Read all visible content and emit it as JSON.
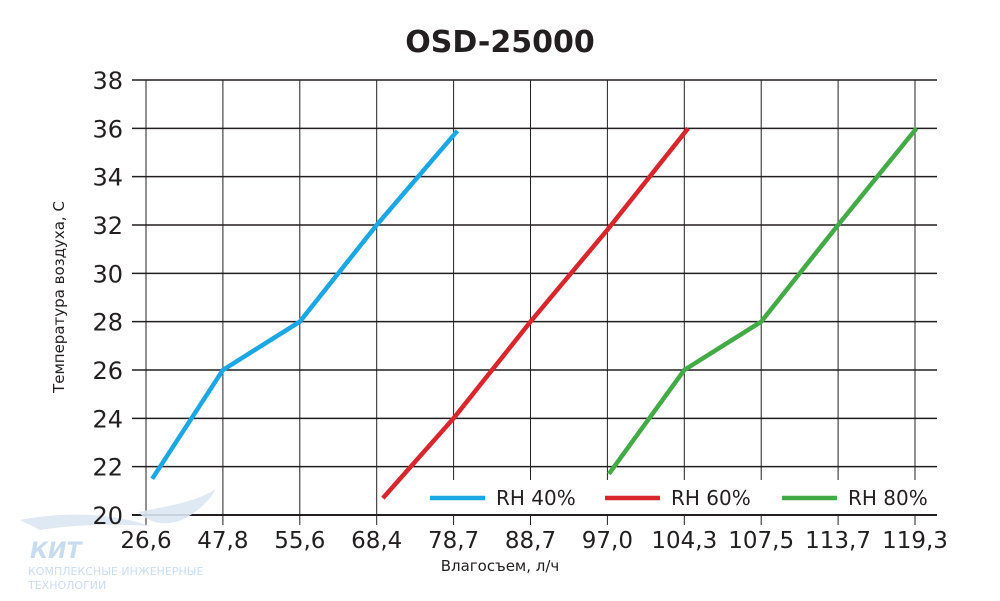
{
  "chart_data": {
    "type": "line",
    "title": "OSD-25000",
    "xlabel": "Влагосъем, л/ч",
    "ylabel": "Температура воздуха, С",
    "x_categories": [
      "26,6",
      "47,8",
      "55,6",
      "68,4",
      "78,7",
      "88,7",
      "97,0",
      "104,3",
      "107,5",
      "113,7",
      "119,3"
    ],
    "yticks": [
      "20",
      "22",
      "24",
      "26",
      "28",
      "30",
      "32",
      "34",
      "36",
      "38"
    ],
    "ylim": [
      20,
      38
    ],
    "grid": "horizontal and vertical",
    "legend_position": "bottom-right inside plot",
    "series": [
      {
        "name": "RH 40%",
        "color": "#1aa7e4",
        "points": [
          [
            0.08,
            21.5
          ],
          [
            1,
            26
          ],
          [
            2,
            28
          ],
          [
            3,
            32
          ],
          [
            4.05,
            35.9
          ]
        ]
      },
      {
        "name": "RH 60%",
        "color": "#d9262c",
        "points": [
          [
            3.08,
            20.7
          ],
          [
            4,
            24
          ],
          [
            5,
            28
          ],
          [
            6,
            31.8
          ],
          [
            7.05,
            36
          ]
        ]
      },
      {
        "name": "RH 80%",
        "color": "#43ab46",
        "points": [
          [
            6.02,
            21.7
          ],
          [
            7,
            26
          ],
          [
            8,
            28
          ],
          [
            9,
            32
          ],
          [
            10.02,
            36
          ]
        ]
      }
    ]
  },
  "watermark": {
    "brand": "КИТ",
    "line1": "КОМПЛЕКСНЫЕ ИНЖЕНЕРНЫЕ",
    "line2": "ТЕХНОЛОГИИ"
  }
}
